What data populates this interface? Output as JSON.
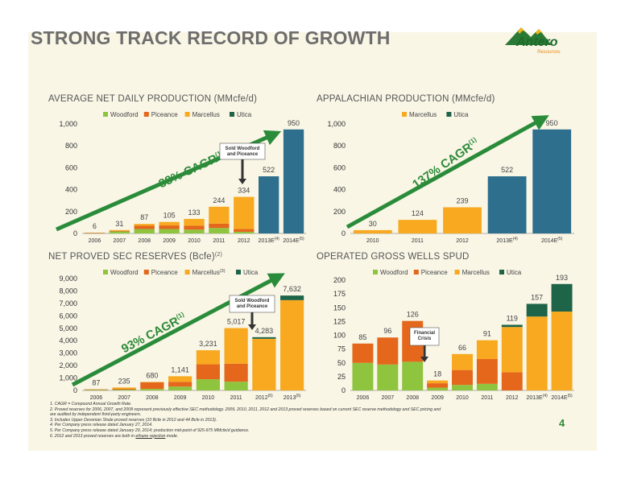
{
  "title": "STRONG TRACK RECORD OF GROWTH",
  "logo": {
    "brand": "Antero",
    "sub": "Resources"
  },
  "colors": {
    "woodford": "#8fc43f",
    "piceance": "#e4671c",
    "marcellus": "#f8a91f",
    "utica": "#1e6448",
    "projected": "#2e6f8e",
    "arrow": "#2a8c3a"
  },
  "page_number": "4",
  "footnotes": [
    "1.  CAGR = Compound Annual Growth Rate.",
    "2.  Proved reserves for 2006, 2007, and 2008 represent previously effective SEC methodology.  2009, 2010, 2011, 2012 and 2013 proved reserves based on current SEC reserve methodology and SEC pricing and",
    "     are audited by independent third-party engineers.",
    "3.  Includes Upper Devonian Shale proved reserves (10 Bcfe in 2012 and 44 Bcfe in 2013).",
    "4.  Per Company press release dated January 27, 2014.",
    "5.  Per Company press release dated January 29, 2014; production mid-point of 925-975 MMcfe/d guidance.",
    "6.  2012 and 2013 proved reserves are both in "
  ],
  "footnote6_link": "ethane rejection",
  "footnote6_end": " mode.",
  "chart_data": [
    {
      "id": "production",
      "type": "bar",
      "title": "AVERAGE NET DAILY PRODUCTION (MMcfe/d)",
      "legend": [
        "Woodford",
        "Piceance",
        "Marcellus",
        "Utica"
      ],
      "categories": [
        "2006",
        "2007",
        "2008",
        "2009",
        "2010",
        "2011",
        "2012",
        "2013E",
        "2014E"
      ],
      "category_sup": [
        "",
        "",
        "",
        "",
        "",
        "",
        "",
        "(4)",
        "(5)"
      ],
      "ylim": [
        0,
        1000
      ],
      "yticks": [
        "0",
        "200",
        "400",
        "600",
        "800",
        "1,000"
      ],
      "series": [
        {
          "name": "Woodford",
          "values": [
            4,
            18,
            40,
            40,
            35,
            50,
            15,
            0,
            0
          ]
        },
        {
          "name": "Piceance",
          "values": [
            2,
            6,
            30,
            33,
            35,
            40,
            25,
            0,
            0
          ]
        },
        {
          "name": "Marcellus",
          "values": [
            0,
            7,
            17,
            32,
            63,
            154,
            294,
            0,
            0
          ]
        },
        {
          "name": "Utica",
          "values": [
            0,
            0,
            0,
            0,
            0,
            0,
            0,
            0,
            0
          ]
        },
        {
          "name": "Total (2013E–2014E)",
          "values": [
            0,
            0,
            0,
            0,
            0,
            0,
            0,
            522,
            950
          ]
        }
      ],
      "labels": [
        "6",
        "31",
        "87",
        "105",
        "133",
        "244",
        "334",
        "522",
        "950"
      ],
      "cagr": "88% CAGR",
      "cagr_sup": "(1)",
      "callout": "Sold Woodford and Piceance"
    },
    {
      "id": "appalachian",
      "type": "bar",
      "title": "APPALACHIAN PRODUCTION (MMcfe/d)",
      "legend": [
        "Marcellus",
        "Utica"
      ],
      "categories": [
        "2010",
        "2011",
        "2012",
        "2013E",
        "2014E"
      ],
      "category_sup": [
        "",
        "",
        "",
        "(4)",
        "(5)"
      ],
      "ylim": [
        0,
        1000
      ],
      "yticks": [
        "0",
        "200",
        "400",
        "600",
        "800",
        "1,000"
      ],
      "series": [
        {
          "name": "Marcellus",
          "values": [
            30,
            124,
            239,
            0,
            0
          ]
        },
        {
          "name": "Total (2013E–2014E)",
          "values": [
            0,
            0,
            0,
            522,
            950
          ]
        }
      ],
      "labels": [
        "30",
        "124",
        "239",
        "522",
        "950"
      ],
      "cagr": "137% CAGR",
      "cagr_sup": "(1)"
    },
    {
      "id": "reserves",
      "type": "bar",
      "title": "NET PROVED SEC RESERVES (Bcfe)",
      "title_sup": "(2)",
      "legend": [
        "Woodford",
        "Piceance",
        "Marcellus",
        "Utica"
      ],
      "legend_sup": [
        "",
        "",
        "(3)",
        ""
      ],
      "categories": [
        "2006",
        "2007",
        "2008",
        "2009",
        "2010",
        "2011",
        "2012",
        "2013"
      ],
      "category_sup": [
        "",
        "",
        "",
        "",
        "",
        "",
        "(6)",
        "(6)"
      ],
      "ylim": [
        0,
        9000
      ],
      "yticks": [
        "0",
        "1,000",
        "2,000",
        "3,000",
        "4,000",
        "5,000",
        "6,000",
        "7,000",
        "8,000",
        "9,000"
      ],
      "series": [
        {
          "name": "Woodford",
          "values": [
            62,
            60,
            120,
            310,
            900,
            700,
            0,
            0
          ]
        },
        {
          "name": "Piceance",
          "values": [
            25,
            75,
            550,
            380,
            1200,
            1450,
            0,
            0
          ]
        },
        {
          "name": "Marcellus",
          "values": [
            0,
            100,
            10,
            451,
            1131,
            2867,
            4153,
            7262
          ]
        },
        {
          "name": "Utica",
          "values": [
            0,
            0,
            0,
            0,
            0,
            0,
            130,
            370
          ]
        }
      ],
      "labels": [
        "87",
        "235",
        "680",
        "1,141",
        "3,231",
        "5,017",
        "4,283",
        "7,632"
      ],
      "cagr": "93% CAGR",
      "cagr_sup": "(1)",
      "callout": "Sold Woodford and Piceance"
    },
    {
      "id": "wells",
      "type": "bar",
      "title": "OPERATED GROSS WELLS SPUD",
      "legend": [
        "Woodford",
        "Piceance",
        "Marcellus",
        "Utica"
      ],
      "categories": [
        "2006",
        "2007",
        "2008",
        "2009",
        "2010",
        "2011",
        "2012",
        "2013E",
        "2014E"
      ],
      "category_sup": [
        "",
        "",
        "",
        "",
        "",
        "",
        "",
        "(4)",
        "(5)"
      ],
      "ylim": [
        0,
        200
      ],
      "yticks": [
        "0",
        "25",
        "50",
        "75",
        "100",
        "125",
        "150",
        "175",
        "200"
      ],
      "series": [
        {
          "name": "Woodford",
          "values": [
            50,
            47,
            52,
            5,
            10,
            12,
            0,
            0,
            0
          ]
        },
        {
          "name": "Piceance",
          "values": [
            35,
            49,
            74,
            8,
            27,
            45,
            33,
            0,
            0
          ]
        },
        {
          "name": "Marcellus",
          "values": [
            0,
            0,
            0,
            5,
            29,
            34,
            82,
            134,
            143
          ]
        },
        {
          "name": "Utica",
          "values": [
            0,
            0,
            0,
            0,
            0,
            0,
            4,
            23,
            50
          ]
        }
      ],
      "labels": [
        "85",
        "96",
        "126",
        "18",
        "66",
        "91",
        "119",
        "157",
        "193"
      ],
      "callout": "Financial Crisis"
    }
  ]
}
